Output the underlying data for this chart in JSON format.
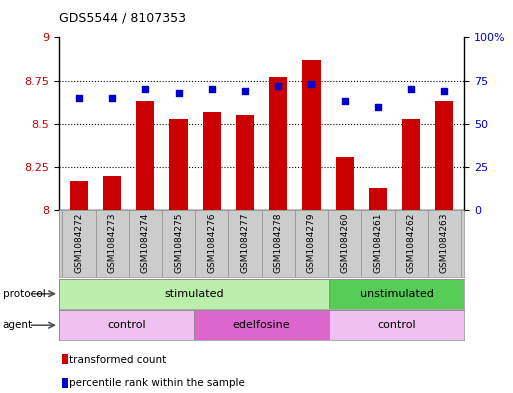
{
  "title": "GDS5544 / 8107353",
  "samples": [
    "GSM1084272",
    "GSM1084273",
    "GSM1084274",
    "GSM1084275",
    "GSM1084276",
    "GSM1084277",
    "GSM1084278",
    "GSM1084279",
    "GSM1084260",
    "GSM1084261",
    "GSM1084262",
    "GSM1084263"
  ],
  "bar_values": [
    8.17,
    8.2,
    8.63,
    8.53,
    8.57,
    8.55,
    8.77,
    8.87,
    8.31,
    8.13,
    8.53,
    8.63
  ],
  "percentile_values": [
    65,
    65,
    70,
    68,
    70,
    69,
    72,
    73,
    63,
    60,
    70,
    69
  ],
  "bar_color": "#cc0000",
  "dot_color": "#0000cc",
  "ylim_left": [
    8.0,
    9.0
  ],
  "ylim_right": [
    0,
    100
  ],
  "yticks_left": [
    8.0,
    8.25,
    8.5,
    8.75,
    9.0
  ],
  "yticks_right": [
    0,
    25,
    50,
    75,
    100
  ],
  "ytick_labels_left": [
    "8",
    "8.25",
    "8.5",
    "8.75",
    "9"
  ],
  "ytick_labels_right": [
    "0",
    "25",
    "50",
    "75",
    "100%"
  ],
  "stim_color": "#bbeeaa",
  "unstim_color": "#55cc55",
  "ctrl_color": "#f0c0f0",
  "edel_color": "#dd66cc",
  "grid_color": "#000000",
  "bg_color": "#ffffff",
  "tick_label_color_left": "#cc0000",
  "tick_label_color_right": "#0000cc",
  "sample_bg": "#cccccc",
  "protocol_label": "protocol",
  "agent_label": "agent",
  "stimulated_label": "stimulated",
  "unstimulated_label": "unstimulated",
  "control_label": "control",
  "edelfosine_label": "edelfosine",
  "legend_bar_label": "transformed count",
  "legend_dot_label": "percentile rank within the sample"
}
